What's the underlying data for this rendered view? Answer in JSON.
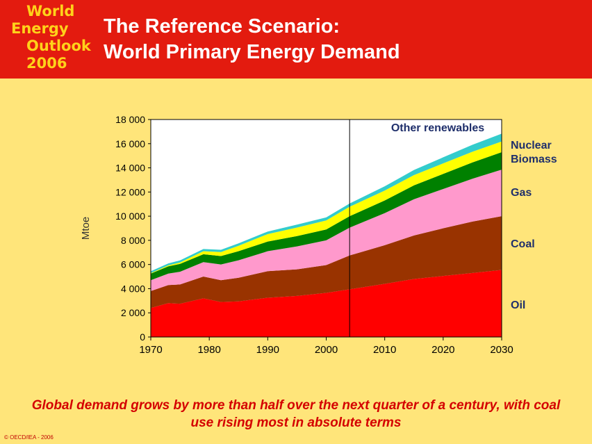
{
  "logo": {
    "line1": "World",
    "line2": "Energy",
    "line3": "Outlook",
    "line4": "2006"
  },
  "header": {
    "title_line1": "The Reference Scenario:",
    "title_line2": "World Primary Energy Demand",
    "color": "#E31B0F"
  },
  "caption": "Global demand grows by more than half over the next quarter of a century, with coal use rising most in absolute terms",
  "copyright": "© OECD/IEA - 2006",
  "chart_data": {
    "type": "area",
    "stacked": true,
    "xlabel": "",
    "ylabel": "Mtoe",
    "xlim": [
      1970,
      2030
    ],
    "ylim": [
      0,
      18000
    ],
    "x_ticks": [
      "1970",
      "1980",
      "1990",
      "2000",
      "2010",
      "2020",
      "2030"
    ],
    "y_ticks": [
      "0",
      "2 000",
      "4 000",
      "6 000",
      "8 000",
      "10 000",
      "12 000",
      "14 000",
      "16 000",
      "18 000"
    ],
    "grid": false,
    "divider_year": 2004,
    "x": [
      1970,
      1973,
      1975,
      1979,
      1982,
      1985,
      1990,
      1995,
      2000,
      2004,
      2010,
      2015,
      2020,
      2025,
      2030
    ],
    "series": [
      {
        "name": "Oil",
        "color": "#FF0000",
        "values": [
          2400,
          2800,
          2750,
          3200,
          2900,
          2950,
          3250,
          3400,
          3650,
          3950,
          4400,
          4800,
          5050,
          5300,
          5550
        ]
      },
      {
        "name": "Coal",
        "color": "#993300",
        "values": [
          1400,
          1500,
          1600,
          1800,
          1800,
          1950,
          2200,
          2200,
          2300,
          2800,
          3200,
          3600,
          3950,
          4250,
          4450
        ]
      },
      {
        "name": "Gas",
        "color": "#FF99CC",
        "values": [
          900,
          950,
          1050,
          1200,
          1300,
          1450,
          1650,
          1900,
          2050,
          2300,
          2650,
          3000,
          3250,
          3550,
          3850
        ]
      },
      {
        "name": "Biomass",
        "color": "#008000",
        "values": [
          550,
          600,
          650,
          650,
          700,
          750,
          800,
          850,
          900,
          950,
          1050,
          1150,
          1250,
          1350,
          1450
        ]
      },
      {
        "name": "Nuclear",
        "color": "#FFFF00",
        "values": [
          40,
          80,
          120,
          250,
          330,
          450,
          620,
          710,
          750,
          780,
          820,
          850,
          870,
          880,
          880
        ]
      },
      {
        "name": "Other renewables",
        "color": "#33CCCC",
        "values": [
          150,
          160,
          170,
          180,
          190,
          200,
          210,
          240,
          250,
          270,
          350,
          420,
          500,
          580,
          650
        ]
      }
    ],
    "labels": {
      "other_renewables": "Other renewables",
      "nuclear": "Nuclear",
      "biomass": "Biomass",
      "gas": "Gas",
      "coal": "Coal",
      "oil": "Oil"
    }
  }
}
